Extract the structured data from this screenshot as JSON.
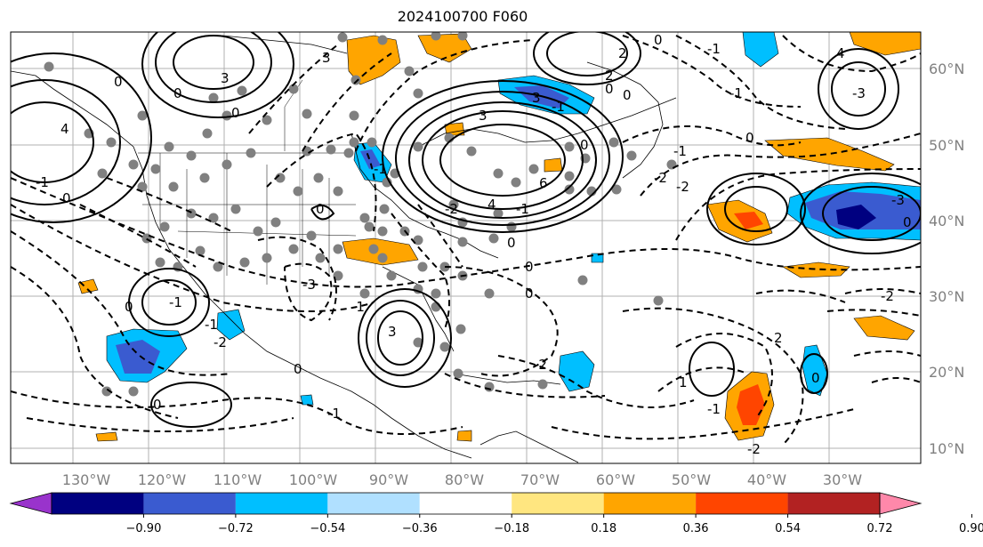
{
  "title": "2024100700 F060",
  "map": {
    "lon_labels": [
      "130°W",
      "120°W",
      "110°W",
      "100°W",
      "90°W",
      "80°W",
      "70°W",
      "60°W",
      "50°W",
      "40°W",
      "30°W"
    ],
    "lat_labels": [
      "60°N",
      "50°N",
      "40°N",
      "30°N",
      "20°N",
      "10°N"
    ],
    "contour_labels": [
      "0",
      "3",
      "0",
      "3",
      "0",
      "4",
      "-1",
      "0",
      "3",
      "3",
      "-1",
      "0",
      "0",
      "2",
      "0",
      "-1",
      "4",
      "-3",
      "4",
      "-2",
      "-1",
      "6",
      "0",
      "0",
      "-1",
      "0",
      "3",
      "-3",
      "-1",
      "-1",
      "-1",
      "0",
      "-1",
      "-2",
      "-1",
      "0",
      "-3",
      "0",
      "-2",
      "2",
      "-2",
      "-1",
      "1",
      "0",
      "0",
      "-2",
      "-2",
      "-1",
      "0",
      "2",
      "0",
      "0",
      "-2"
    ]
  },
  "colorbar": {
    "tick_labels": [
      "−0.90",
      "−0.72",
      "−0.54",
      "−0.36",
      "−0.18",
      "0.18",
      "0.36",
      "0.54",
      "0.72",
      "0.90"
    ],
    "colors": [
      "#9933cc",
      "#000080",
      "#3a5bd0",
      "#00bfff",
      "#b0e0ff",
      "#ffffff",
      "#ffe680",
      "#ffa500",
      "#ff4500",
      "#b22222",
      "#ff88aa"
    ]
  }
}
